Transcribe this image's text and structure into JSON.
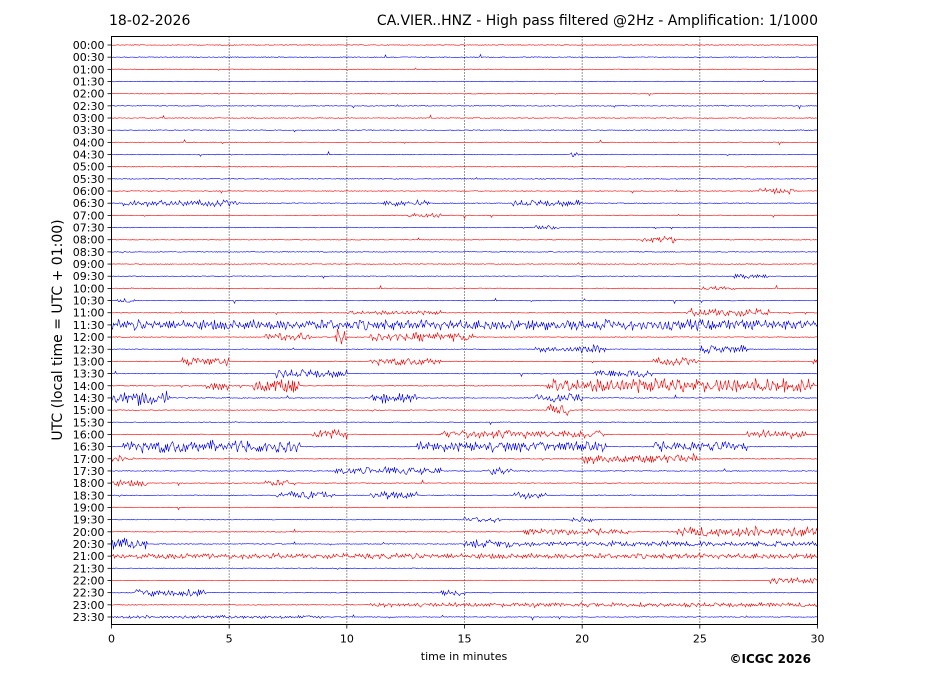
{
  "header": {
    "date": "18-02-2026",
    "title": "CA.VIER..HNZ - High pass filtered @2Hz - Amplification: 1/1000"
  },
  "footer": {
    "copyright": "©ICGC 2026"
  },
  "chart_data": {
    "type": "line",
    "title": "CA.VIER..HNZ - High pass filtered @2Hz - Amplification: 1/1000",
    "xlabel": "time in minutes",
    "ylabel": "UTC (local time = UTC + 01:00)",
    "xlim": [
      0,
      30
    ],
    "x_ticks": [
      "0",
      "5",
      "10",
      "15",
      "20",
      "25",
      "30"
    ],
    "x_tick_values": [
      0,
      5,
      10,
      15,
      20,
      25,
      30
    ],
    "vertical_gridlines_at": [
      5,
      10,
      15,
      20,
      25
    ],
    "grid": "vertical dotted",
    "colors": {
      "odd_hour": "#ff0000",
      "half_hour": "#0000ff"
    },
    "rows": [
      {
        "label": "00:00",
        "color": "#ff0000",
        "activity": []
      },
      {
        "label": "00:30",
        "color": "#0000ff",
        "activity": []
      },
      {
        "label": "01:00",
        "color": "#ff0000",
        "activity": []
      },
      {
        "label": "01:30",
        "color": "#0000ff",
        "activity": []
      },
      {
        "label": "02:00",
        "color": "#ff0000",
        "activity": []
      },
      {
        "label": "02:30",
        "color": "#0000ff",
        "activity": []
      },
      {
        "label": "03:00",
        "color": "#ff0000",
        "activity": []
      },
      {
        "label": "03:30",
        "color": "#0000ff",
        "activity": []
      },
      {
        "label": "04:00",
        "color": "#ff0000",
        "activity": []
      },
      {
        "label": "04:30",
        "color": "#0000ff",
        "activity": [
          [
            19.5,
            19.9,
            0.2
          ]
        ]
      },
      {
        "label": "05:00",
        "color": "#ff0000",
        "activity": []
      },
      {
        "label": "05:30",
        "color": "#0000ff",
        "activity": []
      },
      {
        "label": "06:00",
        "color": "#ff0000",
        "activity": [
          [
            27.5,
            29,
            0.25
          ]
        ]
      },
      {
        "label": "06:30",
        "color": "#0000ff",
        "activity": [
          [
            0.5,
            5.5,
            0.3
          ],
          [
            11.5,
            13.5,
            0.3
          ],
          [
            17,
            20,
            0.3
          ]
        ]
      },
      {
        "label": "07:00",
        "color": "#ff0000",
        "activity": [
          [
            12.5,
            14,
            0.2
          ]
        ]
      },
      {
        "label": "07:30",
        "color": "#0000ff",
        "activity": [
          [
            18,
            19,
            0.25
          ]
        ]
      },
      {
        "label": "08:00",
        "color": "#ff0000",
        "activity": [
          [
            22.5,
            24,
            0.3
          ]
        ]
      },
      {
        "label": "08:30",
        "color": "#0000ff",
        "activity": []
      },
      {
        "label": "09:00",
        "color": "#ff0000",
        "activity": []
      },
      {
        "label": "09:30",
        "color": "#0000ff",
        "activity": [
          [
            26.5,
            28,
            0.2
          ]
        ]
      },
      {
        "label": "10:00",
        "color": "#ff0000",
        "activity": [
          [
            25,
            26.5,
            0.2
          ]
        ]
      },
      {
        "label": "10:30",
        "color": "#0000ff",
        "activity": [
          [
            0.2,
            1,
            0.2
          ]
        ]
      },
      {
        "label": "11:00",
        "color": "#ff0000",
        "activity": [
          [
            10,
            14,
            0.2
          ],
          [
            24.5,
            28,
            0.4
          ]
        ]
      },
      {
        "label": "11:30",
        "color": "#0000ff",
        "activity": [
          [
            0,
            30,
            0.5
          ]
        ]
      },
      {
        "label": "12:00",
        "color": "#ff0000",
        "activity": [
          [
            6.5,
            8.5,
            0.4
          ],
          [
            9.5,
            10,
            0.9
          ],
          [
            11,
            15.5,
            0.4
          ]
        ]
      },
      {
        "label": "12:30",
        "color": "#0000ff",
        "activity": [
          [
            18,
            20,
            0.3
          ],
          [
            20,
            21,
            0.4
          ],
          [
            25,
            27,
            0.4
          ]
        ]
      },
      {
        "label": "13:00",
        "color": "#ff0000",
        "activity": [
          [
            3,
            5,
            0.4
          ],
          [
            11,
            14,
            0.35
          ],
          [
            23,
            25,
            0.35
          ],
          [
            29.8,
            30,
            0.5
          ]
        ]
      },
      {
        "label": "13:30",
        "color": "#0000ff",
        "activity": [
          [
            7,
            10,
            0.4
          ],
          [
            20.5,
            23,
            0.4
          ]
        ]
      },
      {
        "label": "14:00",
        "color": "#ff0000",
        "activity": [
          [
            4,
            5,
            0.4
          ],
          [
            6,
            8,
            0.8
          ],
          [
            18.5,
            30,
            0.7
          ]
        ]
      },
      {
        "label": "14:30",
        "color": "#0000ff",
        "activity": [
          [
            0,
            2.5,
            0.7
          ],
          [
            11,
            13,
            0.5
          ],
          [
            18,
            20,
            0.4
          ]
        ]
      },
      {
        "label": "15:00",
        "color": "#ff0000",
        "activity": [
          [
            18.5,
            19.5,
            0.5
          ]
        ]
      },
      {
        "label": "15:30",
        "color": "#0000ff",
        "activity": []
      },
      {
        "label": "16:00",
        "color": "#ff0000",
        "activity": [
          [
            8.5,
            10,
            0.5
          ],
          [
            14,
            21,
            0.4
          ],
          [
            27,
            29.5,
            0.4
          ]
        ]
      },
      {
        "label": "16:30",
        "color": "#0000ff",
        "activity": [
          [
            0.5,
            8,
            0.6
          ],
          [
            13,
            21,
            0.5
          ],
          [
            23,
            27,
            0.5
          ]
        ]
      },
      {
        "label": "17:00",
        "color": "#ff0000",
        "activity": [
          [
            0,
            1,
            0.3
          ],
          [
            20,
            25,
            0.45
          ]
        ]
      },
      {
        "label": "17:30",
        "color": "#0000ff",
        "activity": [
          [
            9.5,
            14,
            0.35
          ],
          [
            16,
            17,
            0.4
          ]
        ]
      },
      {
        "label": "18:00",
        "color": "#ff0000",
        "activity": [
          [
            0,
            1.5,
            0.3
          ],
          [
            6.5,
            7.5,
            0.3
          ]
        ]
      },
      {
        "label": "18:30",
        "color": "#0000ff",
        "activity": [
          [
            7,
            9.5,
            0.35
          ],
          [
            11,
            13,
            0.4
          ],
          [
            17,
            18.5,
            0.35
          ]
        ]
      },
      {
        "label": "19:00",
        "color": "#ff0000",
        "activity": []
      },
      {
        "label": "19:30",
        "color": "#0000ff",
        "activity": [
          [
            15,
            16.5,
            0.3
          ],
          [
            19.5,
            20.5,
            0.2
          ]
        ]
      },
      {
        "label": "20:00",
        "color": "#ff0000",
        "activity": [
          [
            17.5,
            22,
            0.3
          ],
          [
            24,
            30,
            0.5
          ]
        ]
      },
      {
        "label": "20:30",
        "color": "#0000ff",
        "activity": [
          [
            0,
            1.5,
            0.55
          ],
          [
            15,
            17,
            0.4
          ],
          [
            17,
            30,
            0.25
          ]
        ]
      },
      {
        "label": "21:00",
        "color": "#ff0000",
        "activity": [
          [
            0,
            30,
            0.25
          ]
        ]
      },
      {
        "label": "21:30",
        "color": "#0000ff",
        "activity": []
      },
      {
        "label": "22:00",
        "color": "#ff0000",
        "activity": [
          [
            28,
            30,
            0.3
          ]
        ]
      },
      {
        "label": "22:30",
        "color": "#0000ff",
        "activity": [
          [
            1,
            4,
            0.35
          ],
          [
            14,
            15,
            0.3
          ]
        ]
      },
      {
        "label": "23:00",
        "color": "#ff0000",
        "activity": [
          [
            11,
            30,
            0.2
          ]
        ]
      },
      {
        "label": "23:30",
        "color": "#0000ff",
        "activity": [
          [
            0,
            9,
            0.15
          ]
        ]
      }
    ]
  }
}
